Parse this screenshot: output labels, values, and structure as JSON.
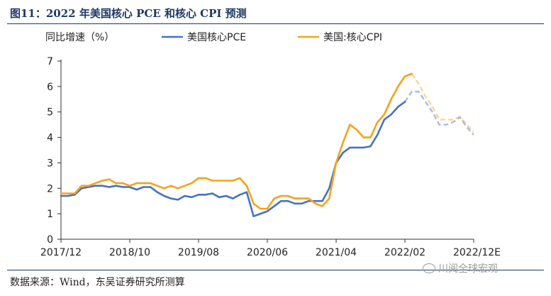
{
  "figure": {
    "title": "图11：2022 年美国核心 PCE 和核心 CPI 预测",
    "source": "数据来源：Wind，东吴证券研究所测算",
    "watermark": "川阅全球宏观"
  },
  "colors": {
    "pce": "#4472c4",
    "cpi": "#f5a31a",
    "axis": "#333333",
    "rule": "#1f3864"
  },
  "chart_data": {
    "type": "line",
    "ylabel": "同比增速（%）",
    "ylim": [
      0,
      7
    ],
    "yticks": [
      0,
      1,
      2,
      3,
      4,
      5,
      6,
      7
    ],
    "xlim": [
      "2017-12",
      "2022-12"
    ],
    "xticks": [
      {
        "date": "2017-12",
        "label": "2017/12"
      },
      {
        "date": "2018-10",
        "label": "2018/10"
      },
      {
        "date": "2019-08",
        "label": "2019/08"
      },
      {
        "date": "2020-06",
        "label": "2020/06"
      },
      {
        "date": "2021-04",
        "label": "2021/04"
      },
      {
        "date": "2022-02",
        "label": "2022/02"
      },
      {
        "date": "2022-12",
        "label": "2022/12E"
      }
    ],
    "legend_position": "top",
    "series": [
      {
        "name": "美国核心PCE",
        "color": "#4472c4",
        "actual": [
          [
            "2017-12",
            1.7
          ],
          [
            "2018-01",
            1.7
          ],
          [
            "2018-02",
            1.75
          ],
          [
            "2018-03",
            2.0
          ],
          [
            "2018-04",
            2.05
          ],
          [
            "2018-05",
            2.1
          ],
          [
            "2018-06",
            2.1
          ],
          [
            "2018-07",
            2.05
          ],
          [
            "2018-08",
            2.1
          ],
          [
            "2018-09",
            2.05
          ],
          [
            "2018-10",
            2.05
          ],
          [
            "2018-11",
            1.95
          ],
          [
            "2018-12",
            2.05
          ],
          [
            "2019-01",
            2.05
          ],
          [
            "2019-02",
            1.85
          ],
          [
            "2019-03",
            1.7
          ],
          [
            "2019-04",
            1.6
          ],
          [
            "2019-05",
            1.55
          ],
          [
            "2019-06",
            1.7
          ],
          [
            "2019-07",
            1.65
          ],
          [
            "2019-08",
            1.75
          ],
          [
            "2019-09",
            1.75
          ],
          [
            "2019-10",
            1.8
          ],
          [
            "2019-11",
            1.65
          ],
          [
            "2019-12",
            1.7
          ],
          [
            "2020-01",
            1.6
          ],
          [
            "2020-02",
            1.75
          ],
          [
            "2020-03",
            1.85
          ],
          [
            "2020-04",
            0.9
          ],
          [
            "2020-05",
            1.0
          ],
          [
            "2020-06",
            1.1
          ],
          [
            "2020-07",
            1.3
          ],
          [
            "2020-08",
            1.5
          ],
          [
            "2020-09",
            1.5
          ],
          [
            "2020-10",
            1.4
          ],
          [
            "2020-11",
            1.4
          ],
          [
            "2020-12",
            1.5
          ],
          [
            "2021-01",
            1.5
          ],
          [
            "2021-02",
            1.5
          ],
          [
            "2021-03",
            2.0
          ],
          [
            "2021-04",
            3.0
          ],
          [
            "2021-05",
            3.4
          ],
          [
            "2021-06",
            3.6
          ],
          [
            "2021-07",
            3.6
          ],
          [
            "2021-08",
            3.6
          ],
          [
            "2021-09",
            3.65
          ],
          [
            "2021-10",
            4.1
          ],
          [
            "2021-11",
            4.7
          ],
          [
            "2021-12",
            4.9
          ],
          [
            "2022-01",
            5.2
          ],
          [
            "2022-02",
            5.4
          ]
        ],
        "forecast": [
          [
            "2022-02",
            5.4
          ],
          [
            "2022-03",
            5.8
          ],
          [
            "2022-04",
            5.8
          ],
          [
            "2022-05",
            5.4
          ],
          [
            "2022-06",
            5.0
          ],
          [
            "2022-07",
            4.5
          ],
          [
            "2022-08",
            4.5
          ],
          [
            "2022-09",
            4.6
          ],
          [
            "2022-10",
            4.8
          ],
          [
            "2022-11",
            4.4
          ],
          [
            "2022-12",
            4.1
          ]
        ]
      },
      {
        "name": "美国:核心CPI",
        "color": "#f5a31a",
        "actual": [
          [
            "2017-12",
            1.8
          ],
          [
            "2018-01",
            1.8
          ],
          [
            "2018-02",
            1.8
          ],
          [
            "2018-03",
            2.1
          ],
          [
            "2018-04",
            2.1
          ],
          [
            "2018-05",
            2.2
          ],
          [
            "2018-06",
            2.3
          ],
          [
            "2018-07",
            2.35
          ],
          [
            "2018-08",
            2.2
          ],
          [
            "2018-09",
            2.2
          ],
          [
            "2018-10",
            2.1
          ],
          [
            "2018-11",
            2.2
          ],
          [
            "2018-12",
            2.2
          ],
          [
            "2019-01",
            2.2
          ],
          [
            "2019-02",
            2.1
          ],
          [
            "2019-03",
            2.0
          ],
          [
            "2019-04",
            2.1
          ],
          [
            "2019-05",
            2.0
          ],
          [
            "2019-06",
            2.1
          ],
          [
            "2019-07",
            2.2
          ],
          [
            "2019-08",
            2.4
          ],
          [
            "2019-09",
            2.4
          ],
          [
            "2019-10",
            2.3
          ],
          [
            "2019-11",
            2.3
          ],
          [
            "2019-12",
            2.3
          ],
          [
            "2020-01",
            2.3
          ],
          [
            "2020-02",
            2.4
          ],
          [
            "2020-03",
            2.1
          ],
          [
            "2020-04",
            1.4
          ],
          [
            "2020-05",
            1.2
          ],
          [
            "2020-06",
            1.2
          ],
          [
            "2020-07",
            1.6
          ],
          [
            "2020-08",
            1.7
          ],
          [
            "2020-09",
            1.7
          ],
          [
            "2020-10",
            1.6
          ],
          [
            "2020-11",
            1.6
          ],
          [
            "2020-12",
            1.6
          ],
          [
            "2021-01",
            1.4
          ],
          [
            "2021-02",
            1.3
          ],
          [
            "2021-03",
            1.6
          ],
          [
            "2021-04",
            3.0
          ],
          [
            "2021-05",
            3.8
          ],
          [
            "2021-06",
            4.5
          ],
          [
            "2021-07",
            4.3
          ],
          [
            "2021-08",
            4.0
          ],
          [
            "2021-09",
            4.0
          ],
          [
            "2021-10",
            4.6
          ],
          [
            "2021-11",
            4.9
          ],
          [
            "2021-12",
            5.5
          ],
          [
            "2022-01",
            6.0
          ],
          [
            "2022-02",
            6.4
          ],
          [
            "2022-03",
            6.5
          ]
        ],
        "forecast": [
          [
            "2022-03",
            6.5
          ],
          [
            "2022-04",
            6.1
          ],
          [
            "2022-05",
            5.6
          ],
          [
            "2022-06",
            5.2
          ],
          [
            "2022-07",
            4.7
          ],
          [
            "2022-08",
            4.7
          ],
          [
            "2022-09",
            4.7
          ],
          [
            "2022-10",
            4.8
          ],
          [
            "2022-11",
            4.5
          ],
          [
            "2022-12",
            4.2
          ]
        ]
      }
    ]
  }
}
